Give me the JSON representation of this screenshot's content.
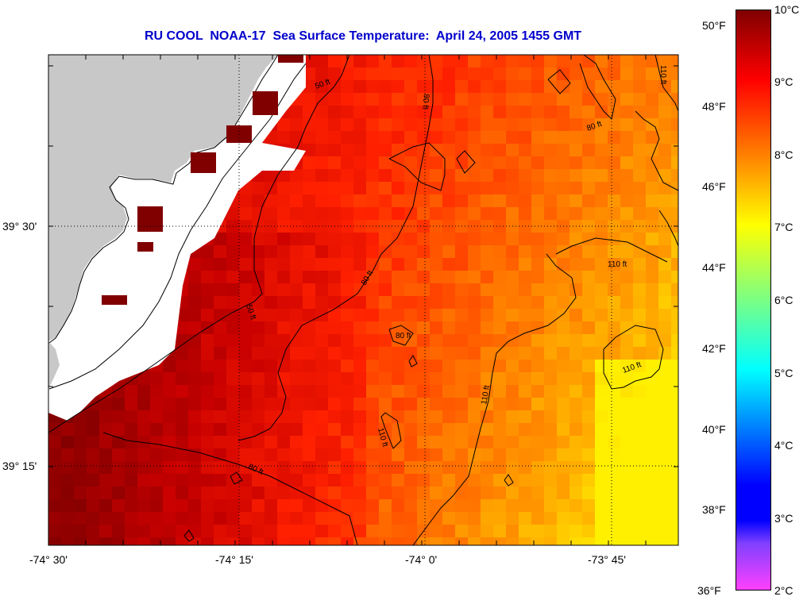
{
  "title": "RU COOL  NOAA-17  Sea Surface Temperature:  April 24, 2005 1455 GMT",
  "map": {
    "longitude_ticks": [
      "-74° 30'",
      "-74° 15'",
      "-74° 0'",
      "-73° 45'"
    ],
    "latitude_ticks": [
      "39° 30'",
      "39° 15'"
    ],
    "land_color": "#c8c8c8",
    "cloud_mask_color": "#ffffff",
    "contour_labels": [
      "50 ft",
      "80 ft",
      "110 ft"
    ]
  },
  "colorbar": {
    "celsius_labels": [
      "10°C",
      "9°C",
      "8°C",
      "7°C",
      "6°C",
      "5°C",
      "4°C",
      "3°C",
      "2°C"
    ],
    "fahrenheit_labels": [
      "50°F",
      "48°F",
      "46°F",
      "44°F",
      "42°F",
      "40°F",
      "38°F",
      "36°F"
    ],
    "range_celsius": [
      2,
      10
    ],
    "colors": [
      "#800000",
      "#ff0000",
      "#ff8000",
      "#ffff00",
      "#00ffff",
      "#0000ff",
      "#8040ff",
      "#ff40ff"
    ]
  }
}
